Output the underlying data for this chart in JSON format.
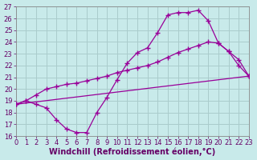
{
  "xlabel": "Windchill (Refroidissement éolien,°C)",
  "background_color": "#c8eaea",
  "line_color": "#990099",
  "grid_color": "#aacccc",
  "xlim": [
    0,
    23
  ],
  "ylim": [
    16,
    27
  ],
  "yticks": [
    16,
    17,
    18,
    19,
    20,
    21,
    22,
    23,
    24,
    25,
    26,
    27
  ],
  "xticks": [
    0,
    1,
    2,
    3,
    4,
    5,
    6,
    7,
    8,
    9,
    10,
    11,
    12,
    13,
    14,
    15,
    16,
    17,
    18,
    19,
    20,
    21,
    22,
    23
  ],
  "curve1_x": [
    0,
    1,
    2,
    3,
    4,
    5,
    6,
    7,
    8,
    9,
    10,
    11,
    12,
    13,
    14,
    15,
    16,
    17,
    18,
    19,
    20,
    21,
    22,
    23
  ],
  "curve1_y": [
    18.7,
    19.0,
    18.7,
    18.4,
    17.4,
    16.6,
    16.3,
    16.3,
    18.0,
    19.3,
    20.8,
    22.2,
    23.1,
    23.5,
    24.8,
    26.3,
    26.5,
    26.5,
    26.7,
    25.8,
    23.9,
    23.2,
    22.0,
    21.1
  ],
  "curve2_x": [
    0,
    1,
    2,
    3,
    4,
    5,
    6,
    7,
    8,
    9,
    10,
    11,
    12,
    13,
    14,
    15,
    16,
    17,
    18,
    19,
    20,
    21,
    22,
    23
  ],
  "curve2_y": [
    18.7,
    19.0,
    19.5,
    20.0,
    20.2,
    20.4,
    20.5,
    20.7,
    20.9,
    21.1,
    21.4,
    21.6,
    21.8,
    22.0,
    22.3,
    22.7,
    23.1,
    23.4,
    23.7,
    24.0,
    23.9,
    23.2,
    22.5,
    21.1
  ],
  "curve3_x": [
    0,
    23
  ],
  "curve3_y": [
    18.7,
    21.1
  ],
  "tick_fontsize": 6.0,
  "label_fontsize": 7.0
}
